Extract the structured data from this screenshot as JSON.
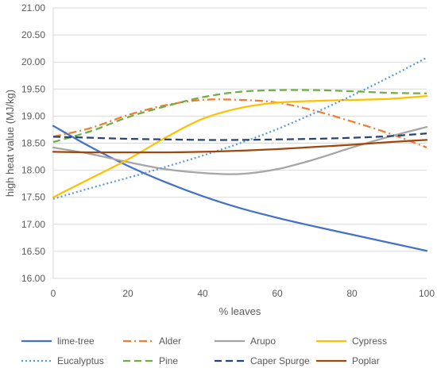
{
  "chart_data": {
    "type": "line",
    "title": "",
    "xlabel": "% leaves",
    "ylabel": "high heat value  (MJ/kg)",
    "xlim": [
      0,
      100
    ],
    "ylim": [
      16.0,
      21.0
    ],
    "x_ticks": [
      0,
      20,
      40,
      60,
      80,
      100
    ],
    "y_ticks": [
      16.0,
      16.5,
      17.0,
      17.5,
      18.0,
      18.5,
      19.0,
      19.5,
      20.0,
      20.5,
      21.0
    ],
    "y_tick_labels": [
      "16.00",
      "16.50",
      "17.00",
      "17.50",
      "18.00",
      "18.50",
      "19.00",
      "19.50",
      "20.00",
      "20.50",
      "21.00"
    ],
    "x_tick_labels": [
      "0",
      "20",
      "40",
      "60",
      "80",
      "100"
    ],
    "grid": "horizontal",
    "legend_position": "bottom",
    "x": [
      0,
      10,
      20,
      30,
      40,
      50,
      60,
      70,
      80,
      90,
      100
    ],
    "series": [
      {
        "name": "lime-tree",
        "color": "#4472C4",
        "dash": "solid",
        "values": [
          18.82,
          18.43,
          18.08,
          17.78,
          17.52,
          17.3,
          17.12,
          16.96,
          16.81,
          16.66,
          16.51
        ]
      },
      {
        "name": "Alder",
        "color": "#ED7D31",
        "dash": "dashdot",
        "values": [
          18.62,
          18.78,
          19.02,
          19.2,
          19.3,
          19.3,
          19.25,
          19.1,
          18.9,
          18.68,
          18.42
        ]
      },
      {
        "name": "Arupo",
        "color": "#A5A5A5",
        "dash": "solid",
        "values": [
          18.42,
          18.3,
          18.15,
          18.02,
          17.95,
          17.93,
          18.02,
          18.2,
          18.42,
          18.62,
          18.8
        ]
      },
      {
        "name": "Cypress",
        "color": "#FFC000",
        "dash": "solid",
        "values": [
          17.5,
          17.85,
          18.2,
          18.6,
          18.95,
          19.15,
          19.25,
          19.28,
          19.3,
          19.32,
          19.37
        ]
      },
      {
        "name": "Eucalyptus",
        "color": "#5B9BD5",
        "dash": "dotted",
        "values": [
          17.47,
          17.67,
          17.86,
          18.06,
          18.27,
          18.5,
          18.76,
          19.06,
          19.38,
          19.72,
          20.08
        ]
      },
      {
        "name": "Pine",
        "color": "#70AD47",
        "dash": "dashed",
        "values": [
          18.52,
          18.72,
          18.98,
          19.18,
          19.35,
          19.45,
          19.48,
          19.48,
          19.46,
          19.43,
          19.42
        ]
      },
      {
        "name": "Caper Spurge",
        "color": "#264478",
        "dash": "dashed",
        "values": [
          18.62,
          18.6,
          18.58,
          18.57,
          18.56,
          18.56,
          18.57,
          18.58,
          18.6,
          18.63,
          18.68
        ]
      },
      {
        "name": "Poplar",
        "color": "#9E480E",
        "dash": "solid",
        "values": [
          18.34,
          18.33,
          18.33,
          18.33,
          18.34,
          18.36,
          18.39,
          18.43,
          18.47,
          18.52,
          18.56
        ]
      }
    ]
  }
}
